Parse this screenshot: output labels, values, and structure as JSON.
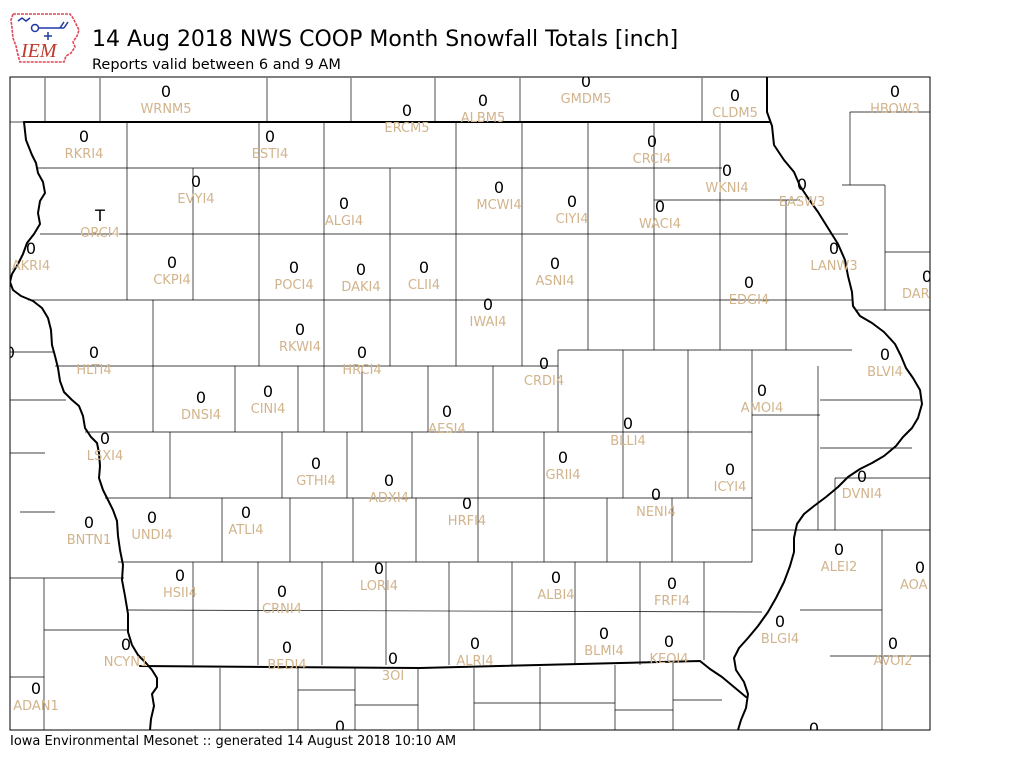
{
  "logo": {
    "text": "IEM"
  },
  "header": {
    "title": "14 Aug 2018 NWS COOP Month Snowfall Totals [inch]",
    "subtitle": "Reports valid between 6 and 9 AM"
  },
  "footer": {
    "text": "Iowa Environmental Mesonet :: generated 14 August 2018 10:10 AM"
  },
  "colors": {
    "station_value": "#000000",
    "station_label": "#d2b48c",
    "boundary": "#000000",
    "logo_outline": "#e0485a",
    "logo_text": "#c0392b",
    "logo_symbols": "#1f3aa5"
  },
  "stations": [
    {
      "id": "WRNM5",
      "value": "0"
    },
    {
      "id": "ERCM5",
      "value": "0"
    },
    {
      "id": "ALBM5",
      "value": "0"
    },
    {
      "id": "GMDM5",
      "value": "0"
    },
    {
      "id": "CLDM5",
      "value": "0"
    },
    {
      "id": "HBOW3",
      "value": "0"
    },
    {
      "id": "RKRI4",
      "value": "0"
    },
    {
      "id": "ESTI4",
      "value": "0"
    },
    {
      "id": "CRCI4",
      "value": "0"
    },
    {
      "id": "WKNI4",
      "value": "0"
    },
    {
      "id": "EASW3",
      "value": "0"
    },
    {
      "id": "EVYI4",
      "value": "0"
    },
    {
      "id": "ORCI4",
      "value": "T"
    },
    {
      "id": "ALGI4",
      "value": "0"
    },
    {
      "id": "MCWI4",
      "value": "0"
    },
    {
      "id": "CIYI4",
      "value": "0"
    },
    {
      "id": "WACI4",
      "value": "0"
    },
    {
      "id": "AKRI4",
      "value": "0"
    },
    {
      "id": "LANW3",
      "value": "0"
    },
    {
      "id": "CKPI4",
      "value": "0"
    },
    {
      "id": "POCI4",
      "value": "0"
    },
    {
      "id": "DAKI4",
      "value": "0"
    },
    {
      "id": "CLII4",
      "value": "0"
    },
    {
      "id": "ASNI4",
      "value": "0"
    },
    {
      "id": "EDGI4",
      "value": "0"
    },
    {
      "id": "DAR",
      "value": "0"
    },
    {
      "id": "IWAI4",
      "value": "0"
    },
    {
      "id": "RKWI4",
      "value": "0"
    },
    {
      "value": "0"
    },
    {
      "id": "HLTI4",
      "value": "0"
    },
    {
      "id": "HRCI4",
      "value": "0"
    },
    {
      "id": "CRDI4",
      "value": "0"
    },
    {
      "id": "BLVI4",
      "value": "0"
    },
    {
      "id": "DNSI4",
      "value": "0"
    },
    {
      "id": "CINI4",
      "value": "0"
    },
    {
      "id": "AMOI4",
      "value": "0"
    },
    {
      "id": "AESI4",
      "value": "0"
    },
    {
      "id": "BLLI4",
      "value": "0"
    },
    {
      "id": "LSXI4",
      "value": "0"
    },
    {
      "id": "GTHI4",
      "value": "0"
    },
    {
      "id": "ADXI4",
      "value": "0"
    },
    {
      "id": "GRII4",
      "value": "0"
    },
    {
      "id": "ICYI4",
      "value": "0"
    },
    {
      "id": "DVNI4",
      "value": "0"
    },
    {
      "id": "HRFI4",
      "value": "0"
    },
    {
      "id": "NENI4",
      "value": "0"
    },
    {
      "id": "ATLI4",
      "value": "0"
    },
    {
      "id": "UNDI4",
      "value": "0"
    },
    {
      "id": "BNTN1",
      "value": "0"
    },
    {
      "id": "ALEI2",
      "value": "0"
    },
    {
      "id": "AOA",
      "value": "0"
    },
    {
      "id": "HSII4",
      "value": "0"
    },
    {
      "id": "LORI4",
      "value": "0"
    },
    {
      "id": "ALBI4",
      "value": "0"
    },
    {
      "id": "FRFI4",
      "value": "0"
    },
    {
      "id": "CRNI4",
      "value": "0"
    },
    {
      "id": "BLGI4",
      "value": "0"
    },
    {
      "id": "BLMI4",
      "value": "0"
    },
    {
      "id": "KEOI4",
      "value": "0"
    },
    {
      "id": "NCYN1",
      "value": "0"
    },
    {
      "id": "ALRI4",
      "value": "0"
    },
    {
      "id": "AVOI2",
      "value": "0"
    },
    {
      "id": "BEDI4",
      "value": "0"
    },
    {
      "id": "3OI",
      "value": "0"
    },
    {
      "id": "ADAN1",
      "value": "0"
    },
    {
      "value": "0"
    },
    {
      "value": "0"
    },
    {
      "value": "0"
    }
  ]
}
